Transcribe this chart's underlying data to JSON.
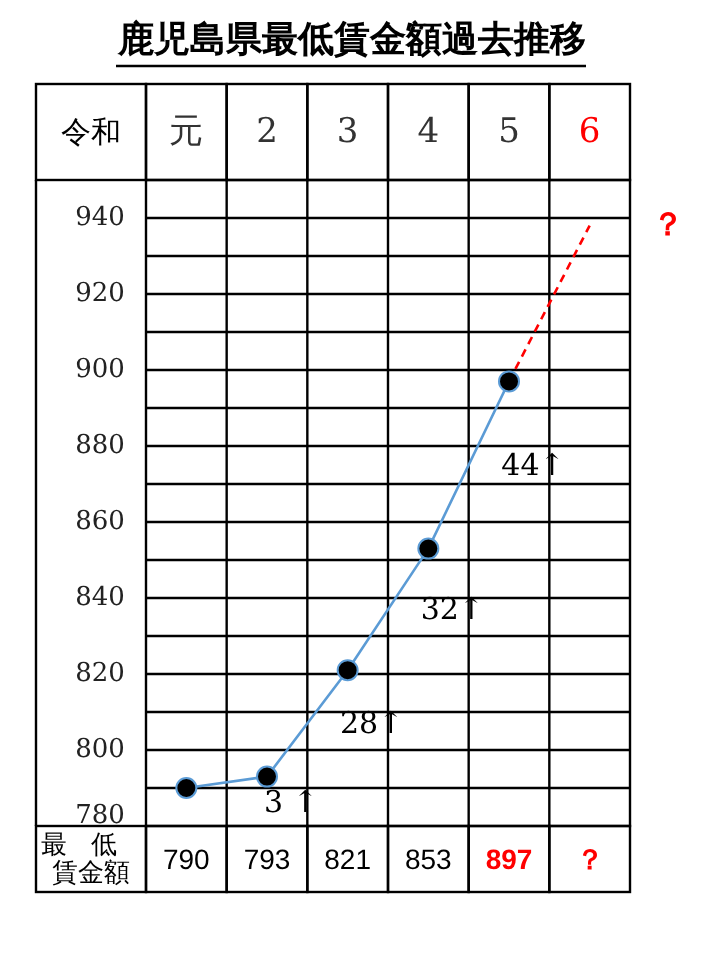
{
  "chart_data": {
    "type": "line",
    "title": "鹿児島県最低賃金額過去推移",
    "xlabel": "令和",
    "categories": [
      "元",
      "2",
      "3",
      "4",
      "5",
      "6"
    ],
    "ylim": [
      780,
      950
    ],
    "yticks": [
      780,
      {
        "value": 790,
        "label": null
      },
      800,
      {
        "value": 810,
        "label": null
      },
      820,
      {
        "value": 830,
        "label": null
      },
      840,
      {
        "value": 850,
        "label": null
      },
      860,
      {
        "value": 870,
        "label": null
      },
      880,
      {
        "value": 890,
        "label": null
      },
      900,
      {
        "value": 910,
        "label": null
      },
      920,
      {
        "value": 930,
        "label": null
      },
      940
    ],
    "grid": true,
    "series": [
      {
        "color": "#5b9bd5",
        "marker": "circle",
        "values": [
          790,
          793,
          821,
          853,
          897,
          null
        ],
        "value_labels": [
          "790",
          "793",
          "821",
          "853",
          "897",
          "？"
        ]
      },
      {
        "color": "#ff0000",
        "line_style": "dashed",
        "marker": "none",
        "values": [
          null,
          null,
          null,
          null,
          897,
          938
        ]
      }
    ],
    "annotations": [
      "3 ↑",
      "28↑",
      "32↑",
      "44↑",
      "？",
      "最低賃金額"
    ]
  }
}
